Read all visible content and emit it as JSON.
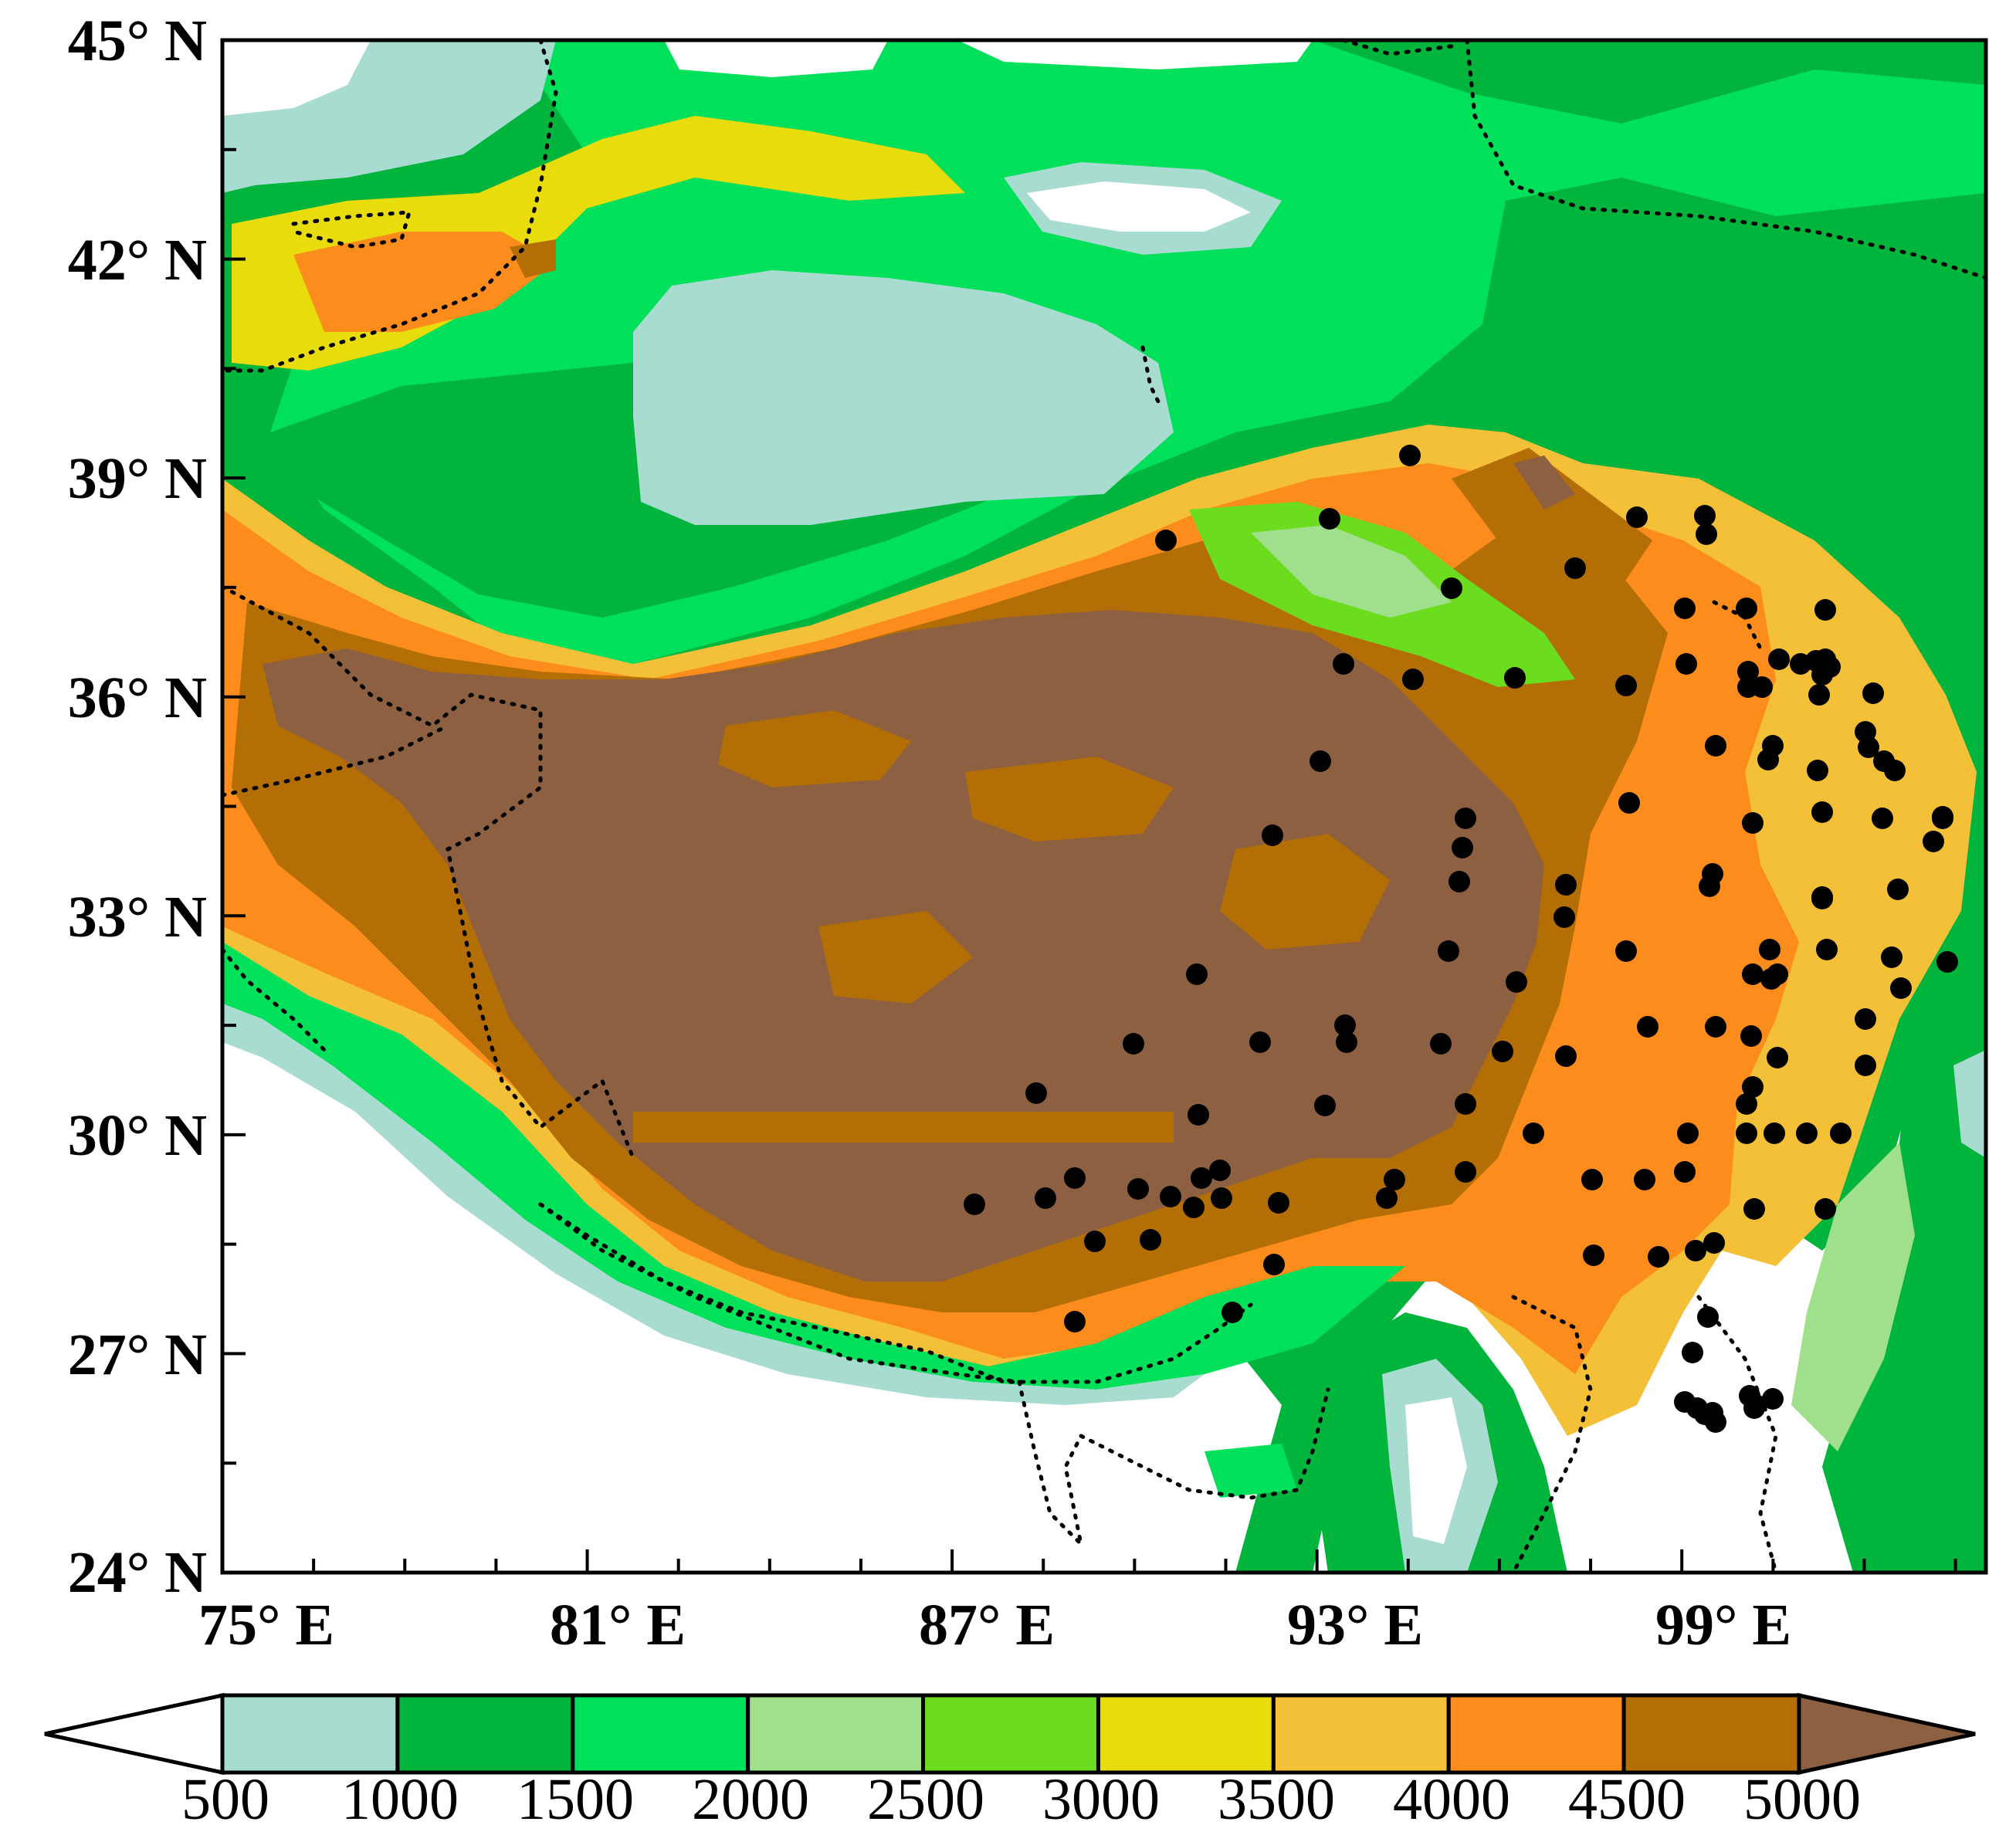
{
  "map": {
    "lat_labels": [
      "45° N",
      "42° N",
      "39° N",
      "36° N",
      "33° N",
      "30° N",
      "27° N",
      "24° N"
    ],
    "lon_labels": [
      "75° E",
      "81° E",
      "87° E",
      "93° E",
      "99° E"
    ],
    "lon_range": [
      75,
      104
    ],
    "lat_range": [
      24,
      45
    ]
  },
  "colorbar": {
    "tick_labels": [
      "500",
      "1000",
      "1500",
      "2000",
      "2500",
      "3000",
      "3500",
      "4000",
      "4500",
      "5000"
    ],
    "colors": {
      "below_500": "#ffffff",
      "500_1000": "#a8dcd1",
      "1000_1500": "#00b43c",
      "1500_2000": "#00e05a",
      "2000_2500": "#a0e08c",
      "2500_3000": "#6cdc1e",
      "3000_3500": "#e8dc0c",
      "3500_4000": "#f4c038",
      "4000_4500": "#fc8c1c",
      "4500_5000": "#b46e06",
      "above_5000": "#8c6040"
    }
  }
}
